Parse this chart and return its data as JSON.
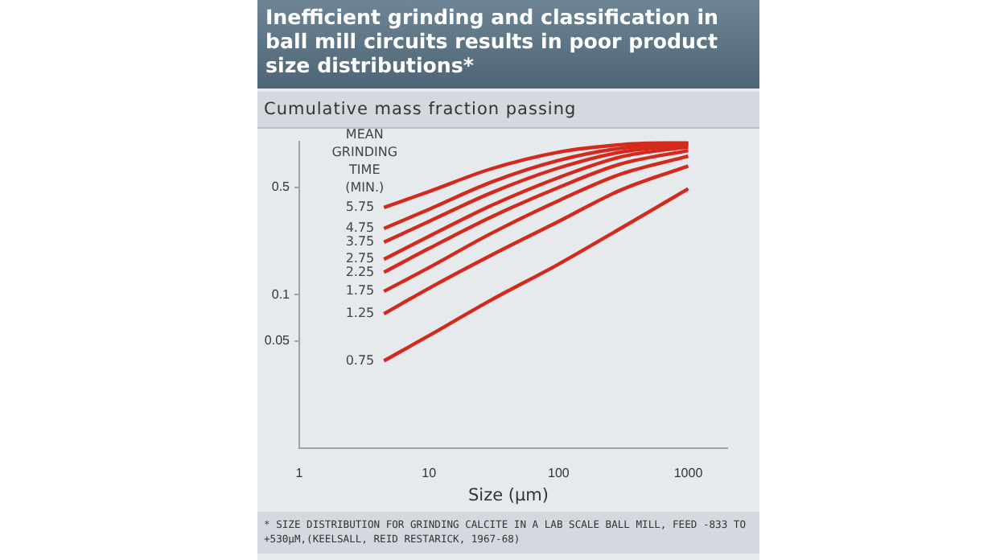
{
  "chart_data": {
    "type": "line",
    "title": "Inefficient grinding and classification in ball mill circuits results in poor product size distributions*",
    "ylabel": "Cumulative mass fraction passing",
    "xlabel": "Size (µm)",
    "legend_title": "MEAN GRINDING TIME (MIN.)",
    "legend": false,
    "log": "xy",
    "grid": false,
    "marker": "none",
    "line_style": "solid",
    "x": [
      4.5,
      10,
      30,
      100,
      300,
      1000
    ],
    "xlim": [
      1,
      2000
    ],
    "xticks": [
      1,
      10,
      100,
      1000
    ],
    "ylim": [
      0.01,
      1
    ],
    "yticks": [
      0.05,
      0.1,
      0.5
    ],
    "series": [
      {
        "name": "5.75",
        "color": "#d42a1e",
        "values": [
          0.37,
          0.47,
          0.66,
          0.85,
          0.95,
          0.99
        ]
      },
      {
        "name": "4.75",
        "color": "#d42a1e",
        "values": [
          0.27,
          0.36,
          0.54,
          0.75,
          0.9,
          0.97
        ]
      },
      {
        "name": "3.75",
        "color": "#d42a1e",
        "values": [
          0.22,
          0.3,
          0.46,
          0.67,
          0.85,
          0.95
        ]
      },
      {
        "name": "2.75",
        "color": "#d42a1e",
        "values": [
          0.17,
          0.24,
          0.38,
          0.58,
          0.79,
          0.92
        ]
      },
      {
        "name": "2.25",
        "color": "#d42a1e",
        "values": [
          0.14,
          0.2,
          0.32,
          0.5,
          0.71,
          0.87
        ]
      },
      {
        "name": "1.75",
        "color": "#d42a1e",
        "values": [
          0.105,
          0.15,
          0.25,
          0.41,
          0.61,
          0.8
        ]
      },
      {
        "name": "1.25",
        "color": "#d42a1e",
        "values": [
          0.075,
          0.11,
          0.18,
          0.3,
          0.48,
          0.69
        ]
      },
      {
        "name": "0.75",
        "color": "#d42a1e",
        "values": [
          0.037,
          0.054,
          0.092,
          0.158,
          0.27,
          0.49
        ]
      }
    ],
    "annotations": [
      "* SIZE DISTRIBUTION FOR GRINDING CALCITE IN A LAB SCALE BALL MILL, FEED -833 TO +530µM,(KEELSALL, REID RESTARICK, 1967-68)"
    ]
  }
}
